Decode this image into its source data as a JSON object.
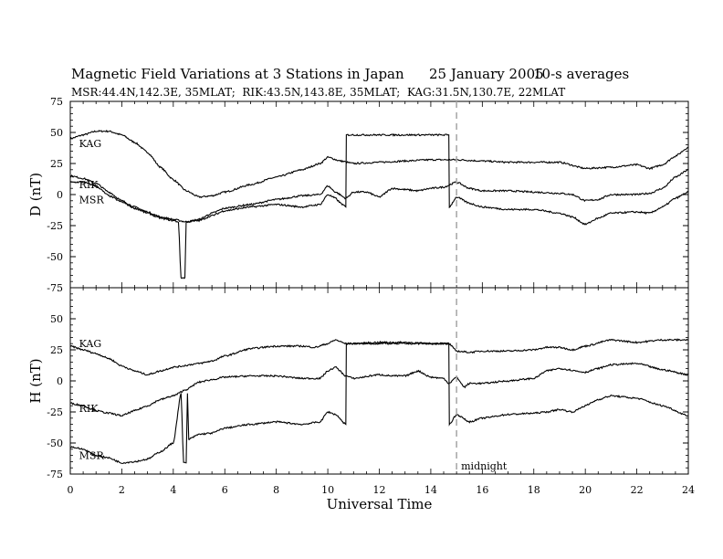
{
  "chart_data": {
    "type": "line",
    "title_main": "Magnetic Field Variations at 3 Stations in Japan",
    "title_date": "25 January 2005",
    "title_avg": "10-s averages",
    "subtitle": "MSR:44.4N,142.3E, 35MLAT;  RIK:43.5N,143.8E, 35MLAT;  KAG:31.5N,130.7E, 22MLAT",
    "xlabel": "Universal Time",
    "xlim": [
      0,
      24
    ],
    "xticks": [
      0,
      2,
      4,
      6,
      8,
      10,
      12,
      14,
      16,
      18,
      20,
      22,
      24
    ],
    "midnight": {
      "x": 15.0,
      "label": "midnight",
      "color": "#aaaaaa"
    },
    "panels": [
      {
        "ylabel": "D (nT)",
        "ylim": [
          -75,
          75
        ],
        "yticks": [
          75,
          50,
          25,
          0,
          -25,
          -50,
          -75
        ],
        "series": [
          {
            "name": "KAG",
            "label_x": 0.2,
            "label_y": 41,
            "points": [
              [
                0,
                45
              ],
              [
                0.5,
                48
              ],
              [
                1,
                51
              ],
              [
                1.5,
                51
              ],
              [
                2,
                48
              ],
              [
                2.5,
                42
              ],
              [
                3,
                34
              ],
              [
                3.5,
                22
              ],
              [
                4,
                12
              ],
              [
                4.5,
                3
              ],
              [
                5,
                -2
              ],
              [
                5.5,
                -1
              ],
              [
                6,
                2
              ],
              [
                7,
                8
              ],
              [
                8,
                14
              ],
              [
                9,
                20
              ],
              [
                9.7,
                25
              ],
              [
                10,
                30
              ],
              [
                10.5,
                27
              ],
              [
                11,
                25
              ],
              [
                12,
                26
              ],
              [
                13,
                27
              ],
              [
                14,
                28
              ],
              [
                15,
                28
              ],
              [
                16,
                27
              ],
              [
                17,
                26
              ],
              [
                18,
                26
              ],
              [
                19,
                26
              ],
              [
                20,
                21
              ],
              [
                21,
                22
              ],
              [
                22,
                24
              ],
              [
                22.5,
                21
              ],
              [
                23,
                24
              ],
              [
                23.5,
                31
              ],
              [
                24,
                38
              ]
            ]
          },
          {
            "name": "RIK",
            "label_x": 0.2,
            "label_y": 8,
            "points": [
              [
                0,
                15
              ],
              [
                0.5,
                13
              ],
              [
                1,
                9
              ],
              [
                1.5,
                2
              ],
              [
                2,
                -5
              ],
              [
                2.5,
                -10
              ],
              [
                3,
                -14
              ],
              [
                3.5,
                -18
              ],
              [
                4,
                -20
              ],
              [
                4.5,
                -22
              ],
              [
                5,
                -20
              ],
              [
                5.5,
                -15
              ],
              [
                6,
                -11
              ],
              [
                7,
                -8
              ],
              [
                8,
                -4
              ],
              [
                9,
                -1
              ],
              [
                9.7,
                0
              ],
              [
                10,
                7
              ],
              [
                10.3,
                2
              ],
              [
                10.7,
                -3
              ],
              [
                11,
                2
              ],
              [
                11.5,
                2
              ],
              [
                12,
                -2
              ],
              [
                12.5,
                5
              ],
              [
                13,
                4
              ],
              [
                13.5,
                3
              ],
              [
                14,
                5
              ],
              [
                14.5,
                6
              ],
              [
                15,
                10
              ],
              [
                15.5,
                5
              ],
              [
                16,
                3
              ],
              [
                17,
                3
              ],
              [
                18,
                2
              ],
              [
                19,
                1
              ],
              [
                19.5,
                0
              ],
              [
                20,
                -5
              ],
              [
                20.5,
                -4
              ],
              [
                21,
                0
              ],
              [
                22,
                0
              ],
              [
                22.5,
                1
              ],
              [
                23,
                5
              ],
              [
                23.5,
                14
              ],
              [
                24,
                20
              ]
            ]
          },
          {
            "name": "MSR",
            "label_x": 0.2,
            "label_y": -4,
            "points": [
              [
                0,
                10
              ],
              [
                0.5,
                10
              ],
              [
                1,
                7
              ],
              [
                1.5,
                -1
              ],
              [
                2,
                -6
              ],
              [
                2.5,
                -11
              ],
              [
                3,
                -15
              ],
              [
                3.5,
                -19
              ],
              [
                4,
                -21
              ],
              [
                4.2,
                -22
              ],
              [
                4.3,
                -67
              ],
              [
                4.45,
                -67
              ],
              [
                4.5,
                -22
              ],
              [
                5,
                -21
              ],
              [
                5.5,
                -17
              ],
              [
                6,
                -13
              ],
              [
                7,
                -10
              ],
              [
                8,
                -8
              ],
              [
                9,
                -10
              ],
              [
                9.7,
                -8
              ],
              [
                10,
                0
              ],
              [
                10.3,
                -3
              ],
              [
                10.5,
                -7
              ],
              [
                10.7,
                -10
              ],
              [
                10.72,
                48
              ],
              [
                14.7,
                48
              ],
              [
                14.72,
                -10
              ],
              [
                15,
                -2
              ],
              [
                15.5,
                -7
              ],
              [
                16,
                -10
              ],
              [
                17,
                -12
              ],
              [
                18,
                -12
              ],
              [
                19,
                -15
              ],
              [
                19.5,
                -18
              ],
              [
                20,
                -24
              ],
              [
                20.5,
                -19
              ],
              [
                21,
                -15
              ],
              [
                22,
                -14
              ],
              [
                22.5,
                -15
              ],
              [
                23,
                -10
              ],
              [
                23.5,
                -3
              ],
              [
                24,
                2
              ]
            ]
          }
        ]
      },
      {
        "ylabel": "H (nT)",
        "ylim": [
          -75,
          75
        ],
        "yticks": [
          75,
          50,
          25,
          0,
          -25,
          -50,
          -75
        ],
        "series": [
          {
            "name": "KAG",
            "label_x": 0.2,
            "label_y": 30,
            "points": [
              [
                0,
                28
              ],
              [
                0.5,
                25
              ],
              [
                1,
                22
              ],
              [
                1.5,
                18
              ],
              [
                2,
                12
              ],
              [
                2.5,
                8
              ],
              [
                3,
                5
              ],
              [
                3.5,
                8
              ],
              [
                4,
                11
              ],
              [
                5,
                14
              ],
              [
                5.5,
                16
              ],
              [
                6,
                20
              ],
              [
                7,
                26
              ],
              [
                8,
                28
              ],
              [
                9,
                28
              ],
              [
                9.5,
                27
              ],
              [
                10,
                30
              ],
              [
                10.3,
                33
              ],
              [
                10.7,
                30
              ],
              [
                11,
                30
              ],
              [
                12,
                31
              ],
              [
                13,
                31
              ],
              [
                14,
                30
              ],
              [
                14.7,
                30
              ],
              [
                15,
                24
              ],
              [
                15.5,
                23
              ],
              [
                16,
                24
              ],
              [
                17,
                24
              ],
              [
                18,
                25
              ],
              [
                18.5,
                27
              ],
              [
                19,
                27
              ],
              [
                19.5,
                25
              ],
              [
                20,
                28
              ],
              [
                21,
                33
              ],
              [
                22,
                31
              ],
              [
                23,
                33
              ],
              [
                24,
                33
              ]
            ]
          },
          {
            "name": "RIK",
            "label_x": 0.2,
            "label_y": -22,
            "points": [
              [
                0,
                -18
              ],
              [
                0.5,
                -20
              ],
              [
                1,
                -24
              ],
              [
                1.5,
                -26
              ],
              [
                2,
                -28
              ],
              [
                2.5,
                -24
              ],
              [
                3,
                -20
              ],
              [
                3.5,
                -15
              ],
              [
                4,
                -12
              ],
              [
                4.5,
                -7
              ],
              [
                5,
                -1
              ],
              [
                5.5,
                1
              ],
              [
                6,
                3
              ],
              [
                7,
                4
              ],
              [
                8,
                4
              ],
              [
                9,
                2
              ],
              [
                9.7,
                2
              ],
              [
                10,
                8
              ],
              [
                10.3,
                11
              ],
              [
                10.7,
                4
              ],
              [
                11,
                2
              ],
              [
                12,
                5
              ],
              [
                12.5,
                4
              ],
              [
                13,
                4
              ],
              [
                13.5,
                8
              ],
              [
                14,
                3
              ],
              [
                14.5,
                2
              ],
              [
                14.7,
                -2
              ],
              [
                15,
                3
              ],
              [
                15.3,
                -5
              ],
              [
                15.5,
                -2
              ],
              [
                16,
                -2
              ],
              [
                17,
                0
              ],
              [
                18,
                2
              ],
              [
                18.5,
                8
              ],
              [
                19,
                10
              ],
              [
                20,
                7
              ],
              [
                20.5,
                10
              ],
              [
                21,
                13
              ],
              [
                22,
                14
              ],
              [
                23,
                9
              ],
              [
                24,
                5
              ]
            ]
          },
          {
            "name": "MSR",
            "label_x": 0.2,
            "label_y": -60,
            "points": [
              [
                0,
                -53
              ],
              [
                0.5,
                -55
              ],
              [
                1,
                -60
              ],
              [
                1.5,
                -62
              ],
              [
                2,
                -66
              ],
              [
                2.5,
                -65
              ],
              [
                3,
                -63
              ],
              [
                3.5,
                -57
              ],
              [
                4,
                -50
              ],
              [
                4.3,
                -10
              ],
              [
                4.4,
                -66
              ],
              [
                4.5,
                -66
              ],
              [
                4.55,
                -10
              ],
              [
                4.6,
                -47
              ],
              [
                5,
                -43
              ],
              [
                5.5,
                -42
              ],
              [
                6,
                -38
              ],
              [
                7,
                -35
              ],
              [
                8,
                -33
              ],
              [
                9,
                -35
              ],
              [
                9.7,
                -33
              ],
              [
                10,
                -25
              ],
              [
                10.3,
                -27
              ],
              [
                10.7,
                -35
              ],
              [
                10.72,
                30
              ],
              [
                14.7,
                30
              ],
              [
                14.72,
                -35
              ],
              [
                15,
                -27
              ],
              [
                15.5,
                -33
              ],
              [
                16,
                -30
              ],
              [
                17,
                -27
              ],
              [
                18,
                -26
              ],
              [
                18.5,
                -25
              ],
              [
                19,
                -23
              ],
              [
                19.5,
                -25
              ],
              [
                20,
                -20
              ],
              [
                20.5,
                -15
              ],
              [
                21,
                -12
              ],
              [
                22,
                -14
              ],
              [
                23,
                -20
              ],
              [
                24,
                -28
              ]
            ]
          }
        ]
      }
    ]
  }
}
